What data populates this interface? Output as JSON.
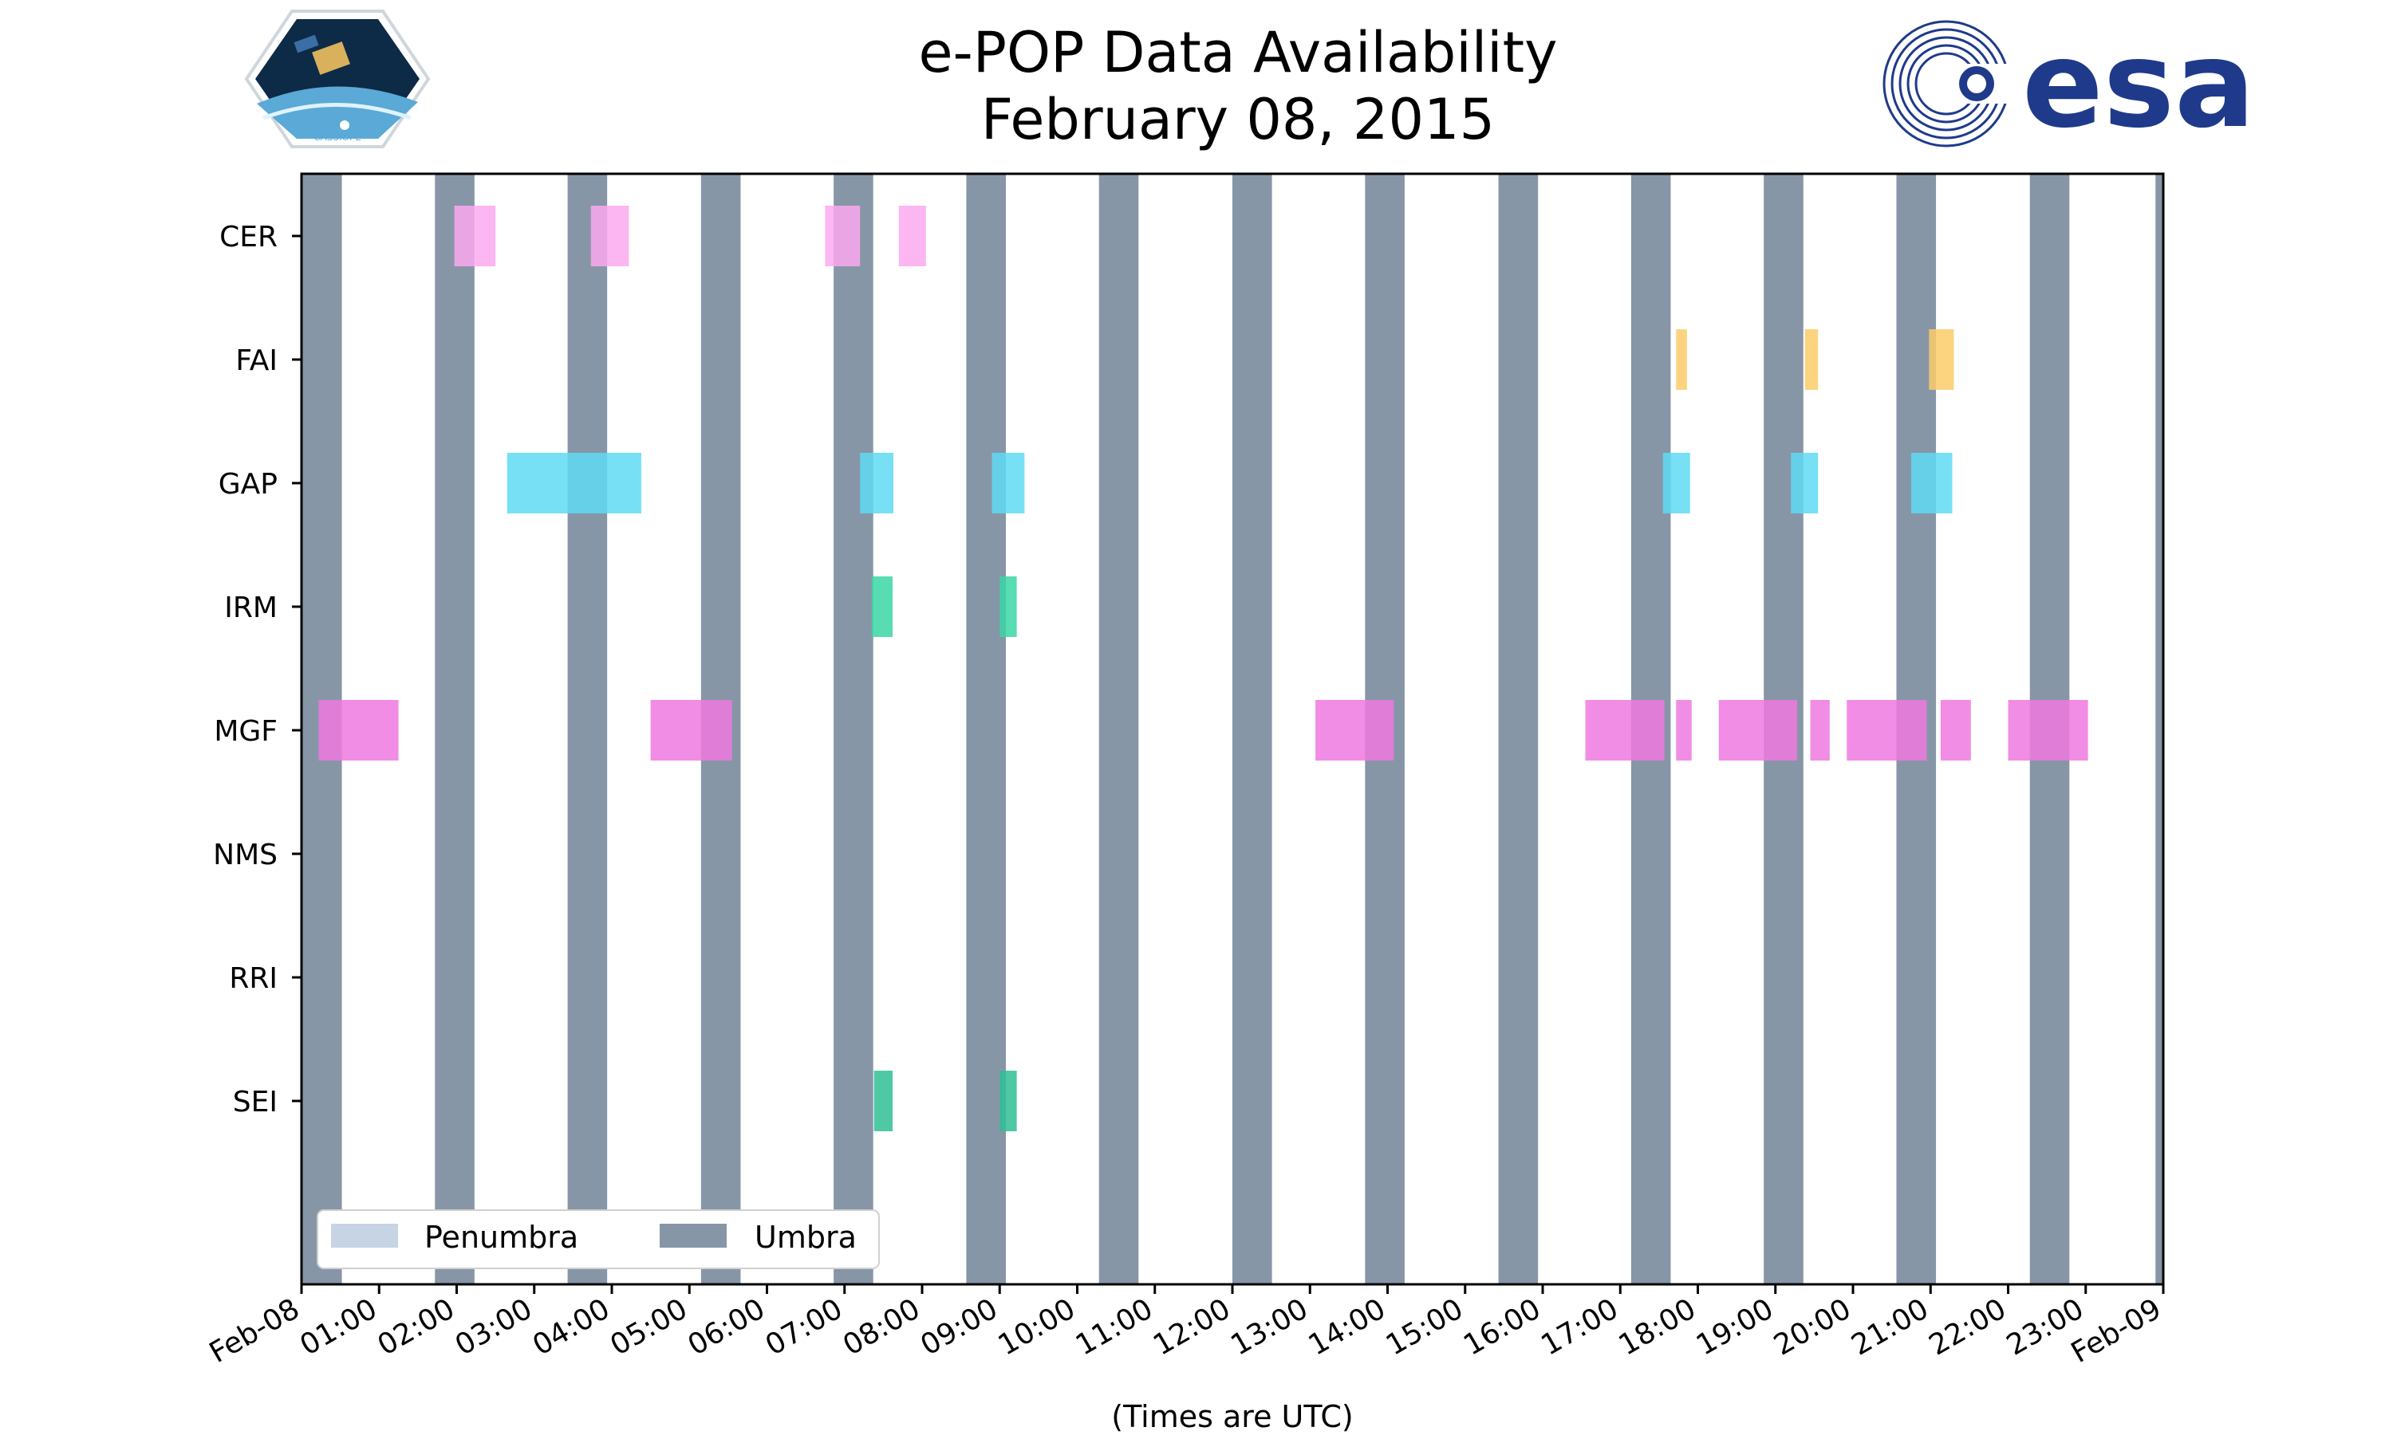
{
  "title_line1": "e-POP Data Availability",
  "title_line2": "February 08, 2015",
  "logos": {
    "left": "CASSIOPE",
    "right": "esa"
  },
  "colors": {
    "umbra": "#8796a6",
    "penumbra": "#c6d4e4",
    "CER": "#fba9ee",
    "FAI": "#fccc6a",
    "GAP": "#5fdbf3",
    "IRM": "#3bd6a4",
    "MGF": "#ee79df",
    "SEI": "#2fbf93",
    "esa_blue": "#1f3a8a"
  },
  "chart_data": {
    "type": "timeline",
    "title": "e-POP Data Availability February 08, 2015",
    "xlabel": "(Times are UTC)",
    "ylabel": "",
    "x_range_hours": [
      0,
      24
    ],
    "x_ticks": [
      "Feb-08",
      "01:00",
      "02:00",
      "03:00",
      "04:00",
      "05:00",
      "06:00",
      "07:00",
      "08:00",
      "09:00",
      "10:00",
      "11:00",
      "12:00",
      "13:00",
      "14:00",
      "15:00",
      "16:00",
      "17:00",
      "18:00",
      "19:00",
      "20:00",
      "21:00",
      "22:00",
      "23:00",
      "Feb-09"
    ],
    "instruments": [
      "CER",
      "FAI",
      "GAP",
      "IRM",
      "MGF",
      "NMS",
      "RRI",
      "SEI"
    ],
    "legend": {
      "placement": "lower-left",
      "entries": [
        "Penumbra",
        "Umbra"
      ]
    },
    "umbra_intervals_hours": [
      [
        0.0,
        0.52
      ],
      [
        1.72,
        2.23
      ],
      [
        3.43,
        3.94
      ],
      [
        5.15,
        5.66
      ],
      [
        6.86,
        7.37
      ],
      [
        8.57,
        9.08
      ],
      [
        10.28,
        10.79
      ],
      [
        12.0,
        12.51
      ],
      [
        13.71,
        14.22
      ],
      [
        15.43,
        15.94
      ],
      [
        17.14,
        17.65
      ],
      [
        18.85,
        19.36
      ],
      [
        20.56,
        21.07
      ],
      [
        22.28,
        22.79
      ],
      [
        23.9,
        24.0
      ]
    ],
    "data_intervals_hours": {
      "CER": [
        [
          1.97,
          2.5
        ],
        [
          3.73,
          4.22
        ],
        [
          6.75,
          7.2
        ],
        [
          7.7,
          8.05
        ]
      ],
      "FAI": [
        [
          17.72,
          17.86
        ],
        [
          19.38,
          19.55
        ],
        [
          20.98,
          21.3
        ]
      ],
      "GAP": [
        [
          2.65,
          4.38
        ],
        [
          7.2,
          7.63
        ],
        [
          8.9,
          9.32
        ],
        [
          17.55,
          17.9
        ],
        [
          19.2,
          19.55
        ],
        [
          20.75,
          21.28
        ]
      ],
      "IRM": [
        [
          7.35,
          7.62
        ],
        [
          9.0,
          9.22
        ]
      ],
      "MGF": [
        [
          0.22,
          1.25
        ],
        [
          4.5,
          5.55
        ],
        [
          13.07,
          14.08
        ],
        [
          16.55,
          17.57
        ],
        [
          17.72,
          17.92
        ],
        [
          18.27,
          19.28
        ],
        [
          19.45,
          19.7
        ],
        [
          19.92,
          20.95
        ],
        [
          21.13,
          21.52
        ],
        [
          22.0,
          23.03
        ]
      ],
      "NMS": [],
      "RRI": [],
      "SEI": [
        [
          7.38,
          7.62
        ],
        [
          9.0,
          9.22
        ]
      ]
    }
  }
}
